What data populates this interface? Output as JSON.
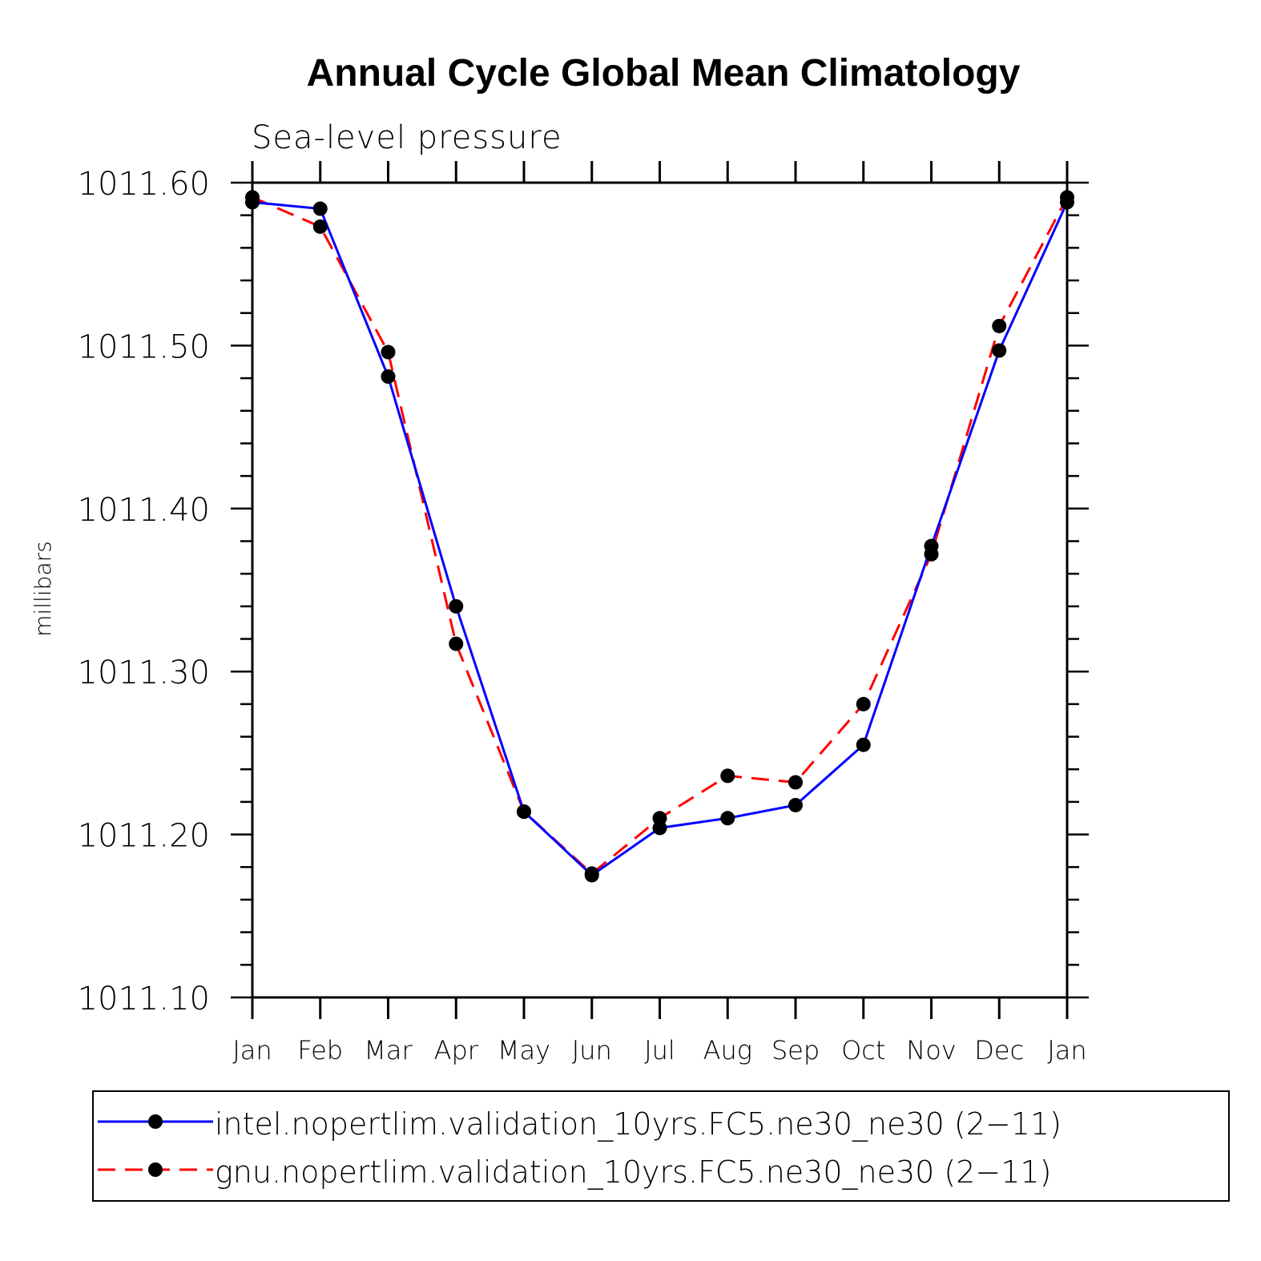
{
  "chart_data": {
    "type": "line",
    "title": "Annual Cycle Global Mean Climatology",
    "subtitle": "Sea-level pressure",
    "xlabel": "",
    "ylabel": "millibars",
    "categories": [
      "Jan",
      "Feb",
      "Mar",
      "Apr",
      "May",
      "Jun",
      "Jul",
      "Aug",
      "Sep",
      "Oct",
      "Nov",
      "Dec",
      "Jan"
    ],
    "ylim": [
      1011.1,
      1011.6
    ],
    "yticks": [
      "1011.60",
      "1011.50",
      "1011.40",
      "1011.30",
      "1011.20",
      "1011.10"
    ],
    "grid": false,
    "legend_position": "bottom",
    "series": [
      {
        "name": "intel.nopertlim.validation_10yrs.FC5.ne30_ne30 (2−11)",
        "color": "#0000ff",
        "line_style": "solid",
        "marker": "filled-circle",
        "values": [
          1011.588,
          1011.584,
          1011.481,
          1011.34,
          1011.214,
          1011.175,
          1011.204,
          1011.21,
          1011.218,
          1011.255,
          1011.377,
          1011.497,
          1011.588
        ]
      },
      {
        "name": "gnu.nopertlim.validation_10yrs.FC5.ne30_ne30 (2−11)",
        "color": "#ff0000",
        "line_style": "dashed",
        "marker": "filled-circle",
        "values": [
          1011.591,
          1011.573,
          1011.496,
          1011.317,
          1011.214,
          1011.176,
          1011.21,
          1011.236,
          1011.232,
          1011.28,
          1011.372,
          1011.512,
          1011.591
        ]
      }
    ]
  }
}
